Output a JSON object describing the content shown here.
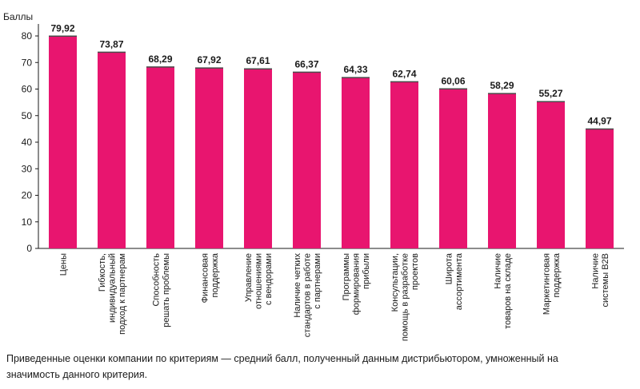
{
  "chart_data": {
    "type": "bar",
    "ylabel": "Баллы",
    "ylim": [
      0,
      80
    ],
    "yticks": [
      0,
      10,
      20,
      30,
      40,
      50,
      60,
      70,
      80
    ],
    "categories": [
      [
        "Цены"
      ],
      [
        "Гибкость,",
        "индивидуальный",
        "подход к партнерам"
      ],
      [
        "Способность",
        "решать проблемы"
      ],
      [
        "Финансовая",
        "поддержка"
      ],
      [
        "Управление",
        "отношениями",
        "с вендорами"
      ],
      [
        "Наличие четких",
        "стандартов в работе",
        "с партнерами"
      ],
      [
        "Программы",
        "формирования",
        "прибыли"
      ],
      [
        "Консультации,",
        "помощь в разработке",
        "проектов"
      ],
      [
        "Широта",
        "ассортимента"
      ],
      [
        "Наличие",
        "товаров на складе"
      ],
      [
        "Маркетинговая",
        "поддержка"
      ],
      [
        "Наличие",
        "системы B2B"
      ]
    ],
    "values": [
      79.92,
      73.87,
      68.29,
      67.92,
      67.61,
      66.37,
      64.33,
      62.74,
      60.06,
      58.29,
      55.27,
      44.97
    ],
    "value_labels": [
      "79,92",
      "73,87",
      "68,29",
      "67,92",
      "67,61",
      "66,37",
      "64,33",
      "62,74",
      "60,06",
      "58,29",
      "55,27",
      "44,97"
    ],
    "bar_color": "#e8156f",
    "grid": false,
    "legend": "none"
  },
  "footnote": "Приведенные оценки компании по критериям — средний балл, полученный данным дистрибьютором, умноженный на значимость данного критерия."
}
